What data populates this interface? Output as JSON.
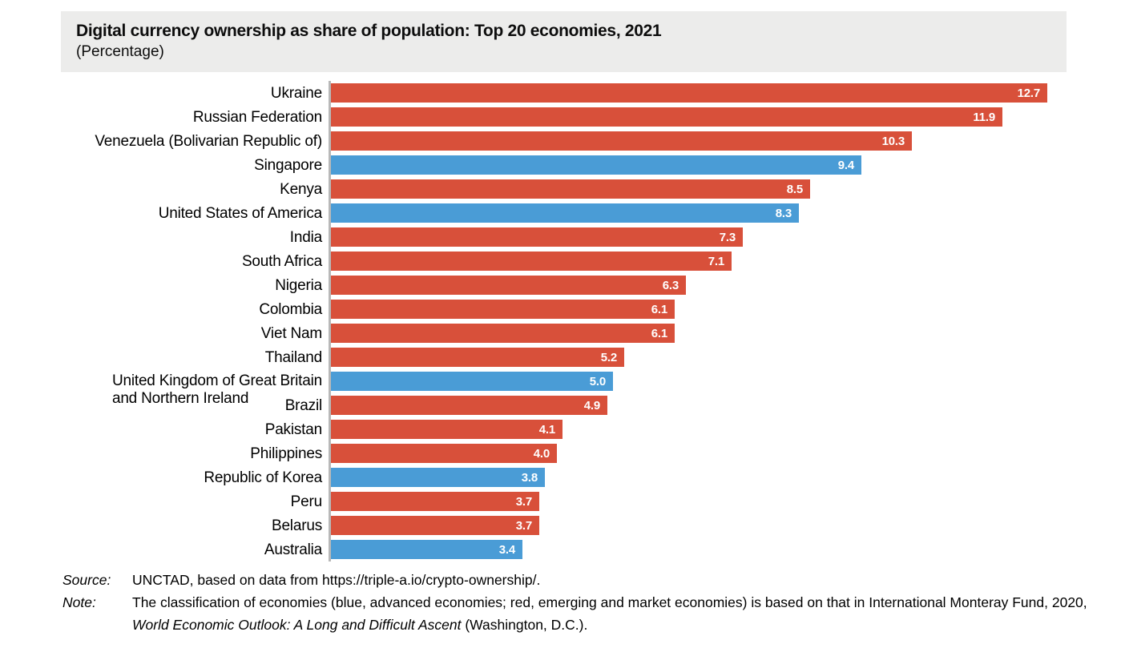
{
  "header": {
    "title": "Digital currency ownership as share of population: Top 20 economies, 2021",
    "subtitle": "(Percentage)"
  },
  "chart_data": {
    "type": "bar",
    "orientation": "horizontal",
    "title": "Digital currency ownership as share of population: Top 20 economies, 2021",
    "units": "Percentage",
    "xlim": [
      0,
      12.7
    ],
    "grid": false,
    "legend": {
      "blue": "advanced economies",
      "red": "emerging and market economies"
    },
    "colors": {
      "advanced": "#4A9CD6",
      "emerging": "#D8503A",
      "axis_line": "#B8B8B8",
      "header_background": "#ECECEB"
    },
    "bars": [
      {
        "label": "Ukraine",
        "value": 12.7,
        "display": "12.7",
        "group": "emerging"
      },
      {
        "label": "Russian Federation",
        "value": 11.9,
        "display": "11.9",
        "group": "emerging"
      },
      {
        "label": "Venezuela (Bolivarian Republic of)",
        "value": 10.3,
        "display": "10.3",
        "group": "emerging"
      },
      {
        "label": "Singapore",
        "value": 9.4,
        "display": "9.4",
        "group": "advanced"
      },
      {
        "label": "Kenya",
        "value": 8.5,
        "display": "8.5",
        "group": "emerging"
      },
      {
        "label": "United States of America",
        "value": 8.3,
        "display": "8.3",
        "group": "advanced"
      },
      {
        "label": "India",
        "value": 7.3,
        "display": "7.3",
        "group": "emerging"
      },
      {
        "label": "South Africa",
        "value": 7.1,
        "display": "7.1",
        "group": "emerging"
      },
      {
        "label": "Nigeria",
        "value": 6.3,
        "display": "6.3",
        "group": "emerging"
      },
      {
        "label": "Colombia",
        "value": 6.1,
        "display": "6.1",
        "group": "emerging"
      },
      {
        "label": "Viet Nam",
        "value": 6.1,
        "display": "6.1",
        "group": "emerging"
      },
      {
        "label": "Thailand",
        "value": 5.2,
        "display": "5.2",
        "group": "emerging"
      },
      {
        "label": "United Kingdom of Great Britain",
        "label_line2": "and Northern Ireland",
        "value": 5.0,
        "display": "5.0",
        "group": "advanced"
      },
      {
        "label": "Brazil",
        "value": 4.9,
        "display": "4.9",
        "group": "emerging"
      },
      {
        "label": "Pakistan",
        "value": 4.1,
        "display": "4.1",
        "group": "emerging"
      },
      {
        "label": "Philippines",
        "value": 4.0,
        "display": "4.0",
        "group": "emerging"
      },
      {
        "label": "Republic of Korea",
        "value": 3.8,
        "display": "3.8",
        "group": "advanced"
      },
      {
        "label": "Peru",
        "value": 3.7,
        "display": "3.7",
        "group": "emerging"
      },
      {
        "label": "Belarus",
        "value": 3.7,
        "display": "3.7",
        "group": "emerging"
      },
      {
        "label": "Australia",
        "value": 3.4,
        "display": "3.4",
        "group": "advanced"
      }
    ]
  },
  "footer": {
    "source_label": "Source:",
    "source_text": "UNCTAD, based on data from https://triple-a.io/crypto-ownership/.",
    "note_label": "Note:",
    "note_text_line1": "The classification of economies (blue, advanced economies; red, emerging and market economies) is based on that in International Monteray Fund, 2020,",
    "note_text_line2_italic": "World Economic Outlook: A Long and Difficult Ascent",
    "note_text_line2_rest": " (Washington, D.C.)."
  }
}
